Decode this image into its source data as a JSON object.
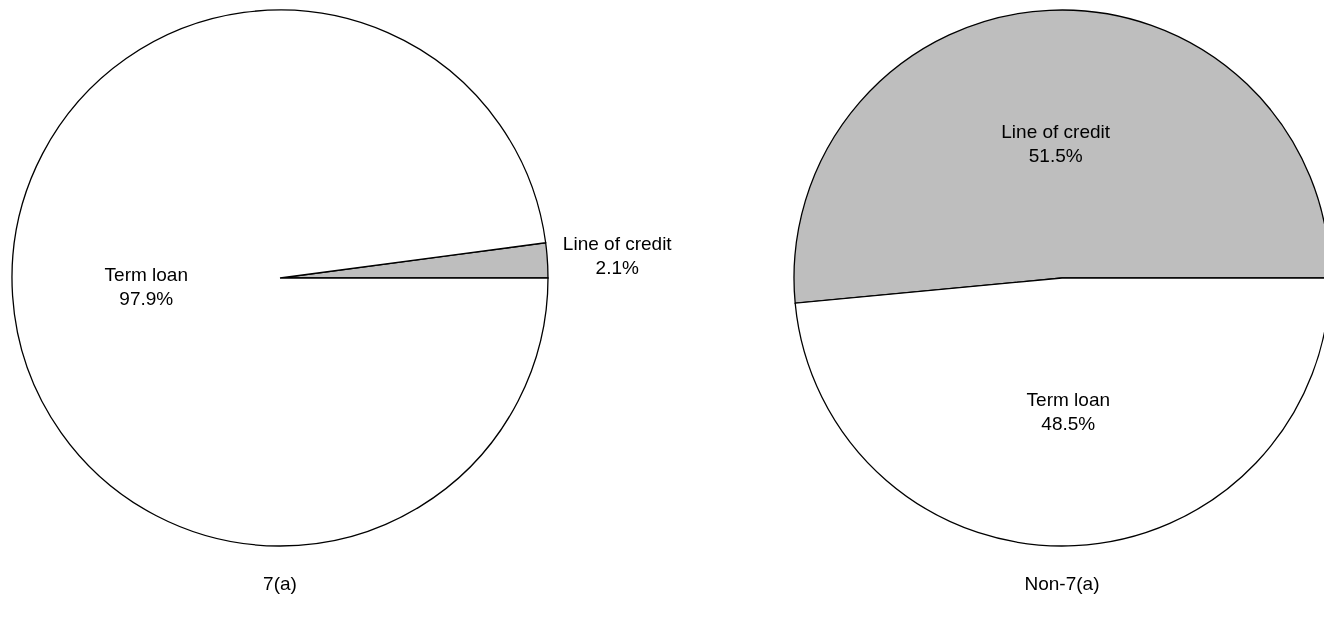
{
  "chart_data": [
    {
      "type": "pie",
      "title": "7(a)",
      "categories": [
        "Line of credit",
        "Term loan"
      ],
      "values": [
        2.1,
        97.9
      ],
      "value_labels": [
        "2.1%",
        "97.9%"
      ],
      "colors": [
        "#bebebe",
        "#ffffff"
      ],
      "legend": false
    },
    {
      "type": "pie",
      "title": "Non-7(a)",
      "categories": [
        "Line of credit",
        "Term loan"
      ],
      "values": [
        51.5,
        48.5
      ],
      "value_labels": [
        "51.5%",
        "48.5%"
      ],
      "colors": [
        "#bebebe",
        "#ffffff"
      ],
      "legend": false
    }
  ]
}
